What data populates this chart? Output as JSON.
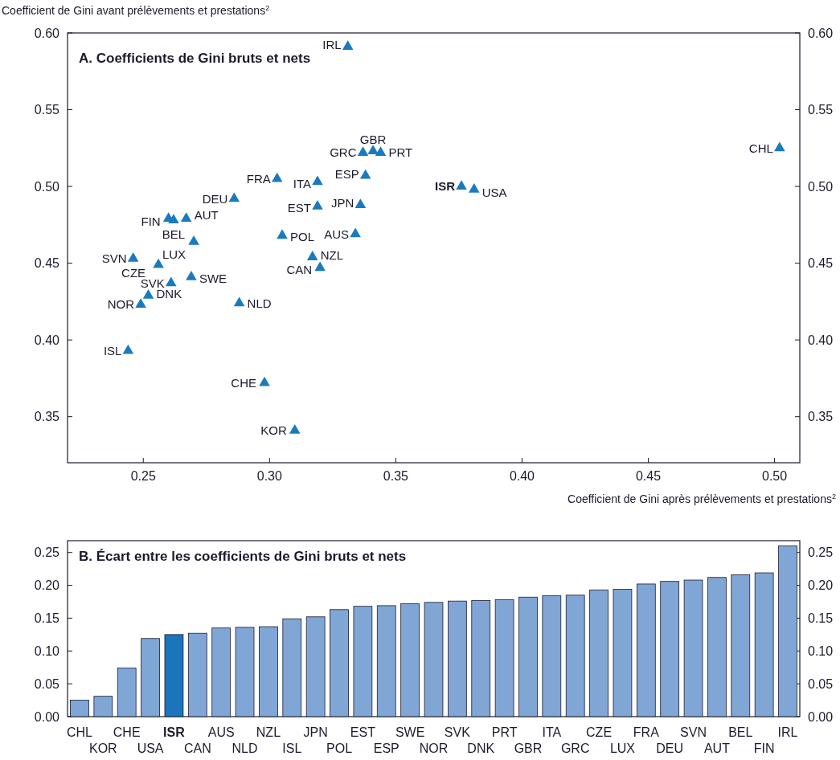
{
  "chart_data": [
    {
      "type": "scatter",
      "title": "A. Coefficients de Gini bruts et nets",
      "xlabel": "Coefficient de Gini après prélèvements et prestations$^{2}$",
      "ylabel": "Coefficient de Gini avant prélèvements et prestations$^{2}$",
      "marker": "triangle",
      "series": [
        {
          "color": "#1a7abf",
          "x": [
            0.331,
            0.337,
            0.341,
            0.344,
            0.303,
            0.319,
            0.338,
            0.286,
            0.319,
            0.336,
            0.26,
            0.262,
            0.267,
            0.305,
            0.334,
            0.27,
            0.246,
            0.317,
            0.256,
            0.32,
            0.269,
            0.261,
            0.252,
            0.249,
            0.288,
            0.244,
            0.298,
            0.31,
            0.376,
            0.381,
            0.502
          ],
          "values": [
            0.591,
            0.522,
            0.523,
            0.522,
            0.505,
            0.503,
            0.507,
            0.492,
            0.487,
            0.488,
            0.479,
            0.478,
            0.479,
            0.468,
            0.469,
            0.464,
            0.453,
            0.454,
            0.449,
            0.447,
            0.441,
            0.437,
            0.429,
            0.423,
            0.424,
            0.393,
            0.372,
            0.341,
            0.5,
            0.498,
            0.525
          ]
        }
      ],
      "annotations": [
        {
          "text": "IRL",
          "x": 0.331,
          "y": 0.591
        },
        {
          "text": "GRC",
          "x": 0.337,
          "y": 0.522
        },
        {
          "text": "GBR",
          "x": 0.341,
          "y": 0.523
        },
        {
          "text": "PRT",
          "x": 0.344,
          "y": 0.522
        },
        {
          "text": "FRA",
          "x": 0.303,
          "y": 0.505
        },
        {
          "text": "ITA",
          "x": 0.319,
          "y": 0.503
        },
        {
          "text": "ESP",
          "x": 0.338,
          "y": 0.507
        },
        {
          "text": "DEU",
          "x": 0.286,
          "y": 0.492
        },
        {
          "text": "EST",
          "x": 0.319,
          "y": 0.487
        },
        {
          "text": "JPN",
          "x": 0.336,
          "y": 0.488
        },
        {
          "text": "FIN",
          "x": 0.26,
          "y": 0.479
        },
        {
          "text": "BEL",
          "x": 0.262,
          "y": 0.478
        },
        {
          "text": "AUT",
          "x": 0.267,
          "y": 0.479
        },
        {
          "text": "POL",
          "x": 0.305,
          "y": 0.468
        },
        {
          "text": "AUS",
          "x": 0.334,
          "y": 0.469
        },
        {
          "text": "LUX",
          "x": 0.27,
          "y": 0.464
        },
        {
          "text": "SVN",
          "x": 0.246,
          "y": 0.453
        },
        {
          "text": "NZL",
          "x": 0.317,
          "y": 0.454
        },
        {
          "text": "CZE",
          "x": 0.256,
          "y": 0.449
        },
        {
          "text": "CAN",
          "x": 0.32,
          "y": 0.447
        },
        {
          "text": "SWE",
          "x": 0.269,
          "y": 0.441
        },
        {
          "text": "SVK",
          "x": 0.261,
          "y": 0.437
        },
        {
          "text": "DNK",
          "x": 0.252,
          "y": 0.429
        },
        {
          "text": "NOR",
          "x": 0.249,
          "y": 0.423
        },
        {
          "text": "NLD",
          "x": 0.288,
          "y": 0.424
        },
        {
          "text": "ISL",
          "x": 0.244,
          "y": 0.393
        },
        {
          "text": "CHE",
          "x": 0.298,
          "y": 0.372
        },
        {
          "text": "KOR",
          "x": 0.31,
          "y": 0.341
        },
        {
          "text": "ISR",
          "x": 0.376,
          "y": 0.5
        },
        {
          "text": "USA",
          "x": 0.381,
          "y": 0.498
        },
        {
          "text": "CHL",
          "x": 0.502,
          "y": 0.525
        }
      ],
      "xlim": [
        0.22,
        0.51
      ],
      "xticks": [
        {
          "value": 0.25,
          "label": "0.25"
        },
        {
          "value": 0.3,
          "label": "0.30"
        },
        {
          "value": 0.35,
          "label": "0.35"
        },
        {
          "value": 0.4,
          "label": "0.40"
        },
        {
          "value": 0.45,
          "label": "0.45"
        },
        {
          "value": 0.5,
          "label": "0.50"
        }
      ],
      "ylim": [
        0.32,
        0.6
      ],
      "yticks": [
        {
          "value": 0.35,
          "label": "0.35"
        },
        {
          "value": 0.4,
          "label": "0.40"
        },
        {
          "value": 0.45,
          "label": "0.45"
        },
        {
          "value": 0.5,
          "label": "0.50"
        },
        {
          "value": 0.55,
          "label": "0.55"
        },
        {
          "value": 0.6,
          "label": "0.60"
        }
      ],
      "y2lim": [
        0.32,
        0.6
      ],
      "y2ticks": [
        {
          "value": 0.35,
          "label": "0.35"
        },
        {
          "value": 0.4,
          "label": "0.40"
        },
        {
          "value": 0.45,
          "label": "0.45"
        },
        {
          "value": 0.5,
          "label": "0.50"
        },
        {
          "value": 0.55,
          "label": "0.55"
        },
        {
          "value": 0.6,
          "label": "0.60"
        }
      ]
    },
    {
      "type": "bar",
      "title": "B. Écart entre les coefficients de Gini bruts et nets",
      "categories": [
        "CHL",
        "KOR",
        "CHE",
        "USA",
        "ISR",
        "CAN",
        "AUS",
        "NLD",
        "NZL",
        "ISL",
        "JPN",
        "POL",
        "EST",
        "ESP",
        "SWE",
        "NOR",
        "SVK",
        "DNK",
        "PRT",
        "GBR",
        "ITA",
        "GRC",
        "CZE",
        "LUX",
        "FRA",
        "DEU",
        "SVN",
        "AUT",
        "BEL",
        "FIN",
        "IRL"
      ],
      "values": [
        0.025,
        0.031,
        0.074,
        0.119,
        0.125,
        0.127,
        0.135,
        0.136,
        0.137,
        0.149,
        0.152,
        0.163,
        0.168,
        0.169,
        0.172,
        0.174,
        0.176,
        0.177,
        0.178,
        0.182,
        0.184,
        0.185,
        0.193,
        0.194,
        0.202,
        0.206,
        0.208,
        0.212,
        0.216,
        0.219,
        0.26
      ],
      "colors": [
        "#80a6d6",
        "#80a6d6",
        "#80a6d6",
        "#80a6d6",
        "#1a75bc",
        "#80a6d6",
        "#80a6d6",
        "#80a6d6",
        "#80a6d6",
        "#80a6d6",
        "#80a6d6",
        "#80a6d6",
        "#80a6d6",
        "#80a6d6",
        "#80a6d6",
        "#80a6d6",
        "#80a6d6",
        "#80a6d6",
        "#80a6d6",
        "#80a6d6",
        "#80a6d6",
        "#80a6d6",
        "#80a6d6",
        "#80a6d6",
        "#80a6d6",
        "#80a6d6",
        "#80a6d6",
        "#80a6d6",
        "#80a6d6",
        "#80a6d6",
        "#80a6d6"
      ],
      "ylim": [
        0,
        0.268
      ],
      "yticks": [
        {
          "value": 0,
          "label": "0.00"
        },
        {
          "value": 0.05,
          "label": "0.05"
        },
        {
          "value": 0.1,
          "label": "0.10"
        },
        {
          "value": 0.15,
          "label": "0.15"
        },
        {
          "value": 0.2,
          "label": "0.20"
        },
        {
          "value": 0.25,
          "label": "0.25"
        }
      ],
      "y2lim": [
        0,
        0.268
      ],
      "y2ticks": [
        {
          "value": 0,
          "label": "0.00"
        },
        {
          "value": 0.05,
          "label": "0.05"
        },
        {
          "value": 0.1,
          "label": "0.10"
        },
        {
          "value": 0.15,
          "label": "0.15"
        },
        {
          "value": 0.2,
          "label": "0.20"
        },
        {
          "value": 0.25,
          "label": "0.25"
        }
      ]
    }
  ]
}
